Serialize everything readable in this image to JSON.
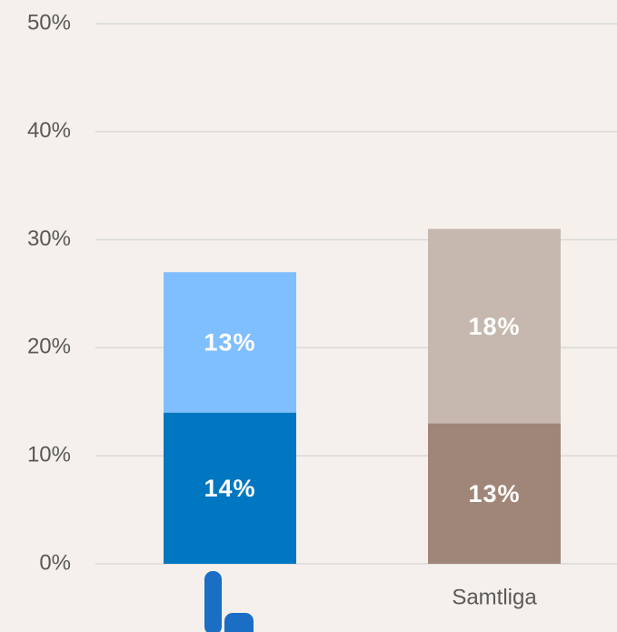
{
  "chart_data": {
    "type": "stacked_bar",
    "categories": [
      null,
      "Samtliga"
    ],
    "series": [
      {
        "colors": [
          "#0077c0",
          "#a08678"
        ],
        "values": [
          14,
          13
        ],
        "value_labels": [
          "14%",
          "13%"
        ]
      },
      {
        "colors": [
          "#80bfff",
          "#c6b8ae"
        ],
        "values": [
          13,
          18
        ],
        "value_labels": [
          "13%",
          "18%"
        ]
      }
    ],
    "ylim": [
      0,
      50
    ],
    "yticks": [
      {
        "value": 0,
        "label": "0%"
      },
      {
        "value": 10,
        "label": "10%"
      },
      {
        "value": 20,
        "label": "20%"
      },
      {
        "value": 30,
        "label": "30%"
      },
      {
        "value": 40,
        "label": "40%"
      },
      {
        "value": 50,
        "label": "50%"
      }
    ],
    "grid": true
  }
}
